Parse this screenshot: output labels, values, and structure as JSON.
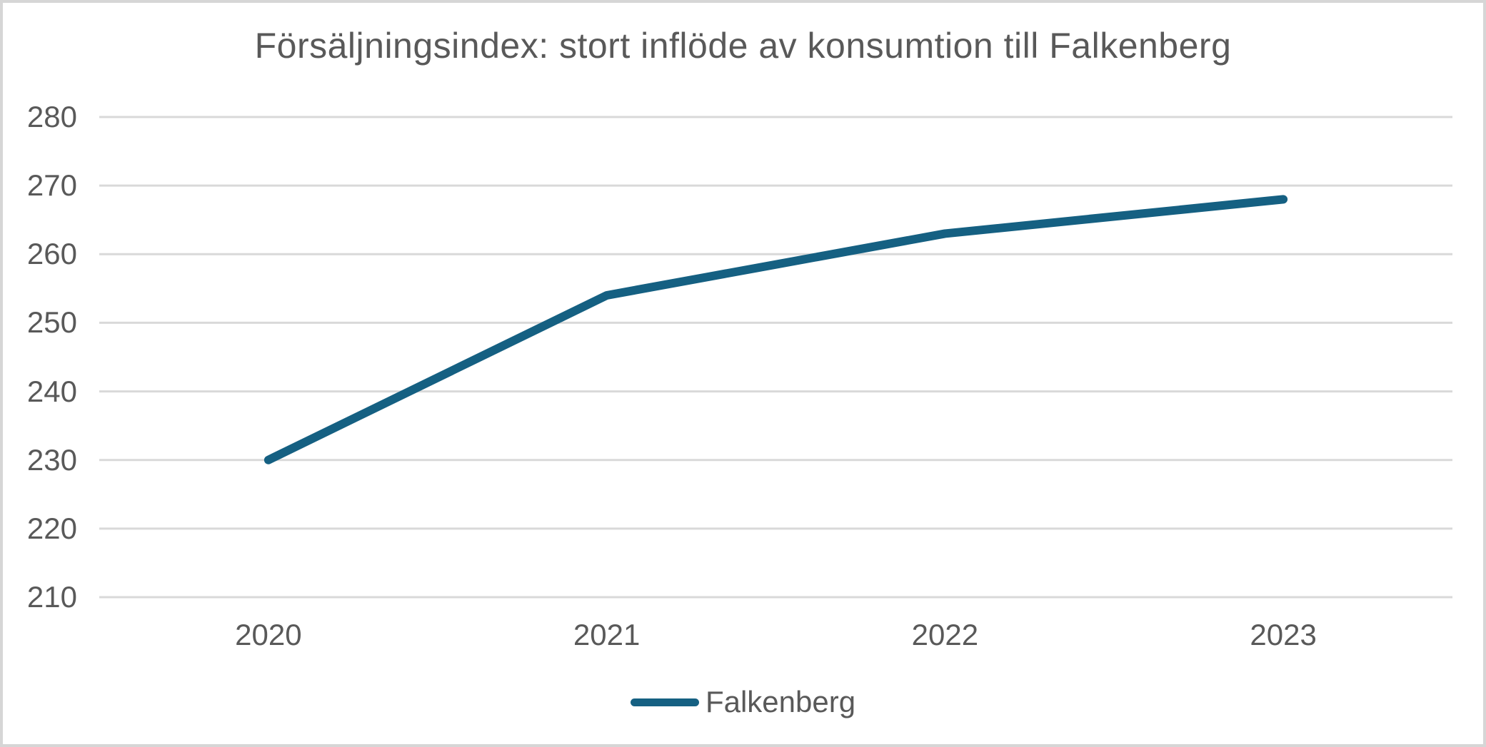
{
  "chart_data": {
    "type": "line",
    "title": "Försäljningsindex: stort inflöde av konsumtion till Falkenberg",
    "categories": [
      "2020",
      "2021",
      "2022",
      "2023"
    ],
    "series": [
      {
        "name": "Falkenberg",
        "values": [
          230,
          254,
          263,
          268
        ],
        "color": "#156082"
      }
    ],
    "y_axis": {
      "min": 210,
      "max": 280,
      "step": 10,
      "ticks": [
        "210",
        "220",
        "230",
        "240",
        "250",
        "260",
        "270",
        "280"
      ]
    },
    "xlabel": "",
    "ylabel": "",
    "grid": true,
    "legend_position": "bottom"
  },
  "colors": {
    "background": "#ffffff",
    "canvas_border": "#d6d6d6",
    "gridline": "#d9d9d9",
    "text": "#595959",
    "series_line": "#156082"
  }
}
